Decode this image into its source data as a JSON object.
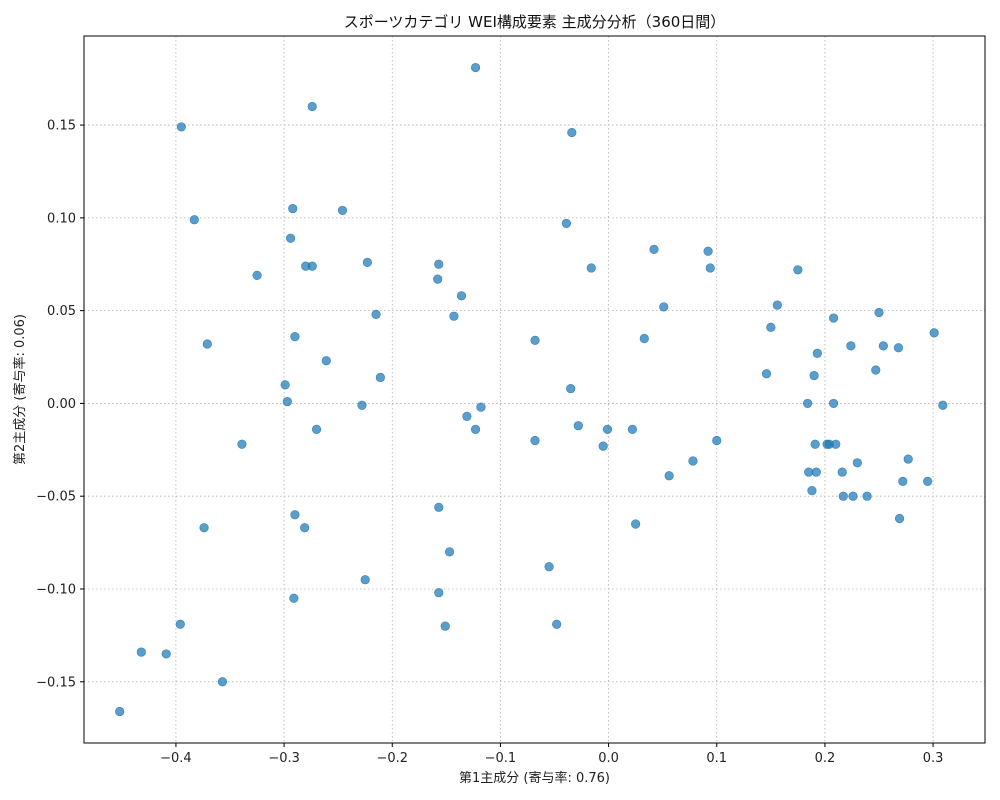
{
  "chart_data": {
    "type": "scatter",
    "title": "スポーツカテゴリ WEI構成要素 主成分分析（360日間）",
    "xlabel": "第1主成分 (寄与率: 0.76)",
    "ylabel": "第2主成分 (寄与率: 0.06)",
    "xlim": [
      -0.485,
      0.348
    ],
    "ylim": [
      -0.183,
      0.198
    ],
    "xticks": [
      -0.4,
      -0.3,
      -0.2,
      -0.1,
      0.0,
      0.1,
      0.2,
      0.3
    ],
    "xtick_labels": [
      "−0.4",
      "−0.3",
      "−0.2",
      "−0.1",
      "0.0",
      "0.1",
      "0.2",
      "0.3"
    ],
    "yticks": [
      -0.15,
      -0.1,
      -0.05,
      0.0,
      0.05,
      0.1,
      0.15
    ],
    "ytick_labels": [
      "−0.15",
      "−0.10",
      "−0.05",
      "0.00",
      "0.05",
      "0.10",
      "0.15"
    ],
    "grid": true,
    "marker_color": "#1f77b4",
    "points": [
      [
        -0.452,
        -0.166
      ],
      [
        -0.432,
        -0.134
      ],
      [
        -0.409,
        -0.135
      ],
      [
        -0.396,
        -0.119
      ],
      [
        -0.395,
        0.149
      ],
      [
        -0.383,
        0.099
      ],
      [
        -0.374,
        -0.067
      ],
      [
        -0.371,
        0.032
      ],
      [
        -0.357,
        -0.15
      ],
      [
        -0.339,
        -0.022
      ],
      [
        -0.325,
        0.069
      ],
      [
        -0.299,
        0.01
      ],
      [
        -0.297,
        0.001
      ],
      [
        -0.294,
        0.089
      ],
      [
        -0.292,
        0.105
      ],
      [
        -0.291,
        -0.105
      ],
      [
        -0.29,
        -0.06
      ],
      [
        -0.29,
        0.036
      ],
      [
        -0.281,
        -0.067
      ],
      [
        -0.28,
        0.074
      ],
      [
        -0.274,
        0.16
      ],
      [
        -0.274,
        0.074
      ],
      [
        -0.27,
        -0.014
      ],
      [
        -0.261,
        0.023
      ],
      [
        -0.246,
        0.104
      ],
      [
        -0.228,
        -0.001
      ],
      [
        -0.225,
        -0.095
      ],
      [
        -0.223,
        0.076
      ],
      [
        -0.215,
        0.048
      ],
      [
        -0.211,
        0.014
      ],
      [
        -0.158,
        0.067
      ],
      [
        -0.157,
        0.075
      ],
      [
        -0.157,
        -0.056
      ],
      [
        -0.157,
        -0.102
      ],
      [
        -0.151,
        -0.12
      ],
      [
        -0.147,
        -0.08
      ],
      [
        -0.143,
        0.047
      ],
      [
        -0.136,
        0.058
      ],
      [
        -0.131,
        -0.007
      ],
      [
        -0.123,
        0.181
      ],
      [
        -0.123,
        -0.014
      ],
      [
        -0.118,
        -0.002
      ],
      [
        -0.068,
        0.034
      ],
      [
        -0.068,
        -0.02
      ],
      [
        -0.055,
        -0.088
      ],
      [
        -0.048,
        -0.119
      ],
      [
        -0.039,
        0.097
      ],
      [
        -0.035,
        0.008
      ],
      [
        -0.034,
        0.146
      ],
      [
        -0.028,
        -0.012
      ],
      [
        -0.016,
        0.073
      ],
      [
        -0.005,
        -0.023
      ],
      [
        -0.001,
        -0.014
      ],
      [
        0.022,
        -0.014
      ],
      [
        0.025,
        -0.065
      ],
      [
        0.033,
        0.035
      ],
      [
        0.042,
        0.083
      ],
      [
        0.051,
        0.052
      ],
      [
        0.056,
        -0.039
      ],
      [
        0.078,
        -0.031
      ],
      [
        0.092,
        0.082
      ],
      [
        0.094,
        0.073
      ],
      [
        0.1,
        -0.02
      ],
      [
        0.146,
        0.016
      ],
      [
        0.15,
        0.041
      ],
      [
        0.156,
        0.053
      ],
      [
        0.175,
        0.072
      ],
      [
        0.184,
        0.0
      ],
      [
        0.185,
        -0.037
      ],
      [
        0.188,
        -0.047
      ],
      [
        0.19,
        0.015
      ],
      [
        0.191,
        -0.022
      ],
      [
        0.192,
        -0.037
      ],
      [
        0.193,
        0.027
      ],
      [
        0.202,
        -0.022
      ],
      [
        0.204,
        -0.022
      ],
      [
        0.208,
        0.046
      ],
      [
        0.208,
        0.0
      ],
      [
        0.21,
        -0.022
      ],
      [
        0.216,
        -0.037
      ],
      [
        0.217,
        -0.05
      ],
      [
        0.224,
        0.031
      ],
      [
        0.226,
        -0.05
      ],
      [
        0.23,
        -0.032
      ],
      [
        0.239,
        -0.05
      ],
      [
        0.247,
        0.018
      ],
      [
        0.25,
        0.049
      ],
      [
        0.254,
        0.031
      ],
      [
        0.268,
        0.03
      ],
      [
        0.269,
        -0.062
      ],
      [
        0.272,
        -0.042
      ],
      [
        0.277,
        -0.03
      ],
      [
        0.295,
        -0.042
      ],
      [
        0.301,
        0.038
      ],
      [
        0.309,
        -0.001
      ]
    ]
  }
}
